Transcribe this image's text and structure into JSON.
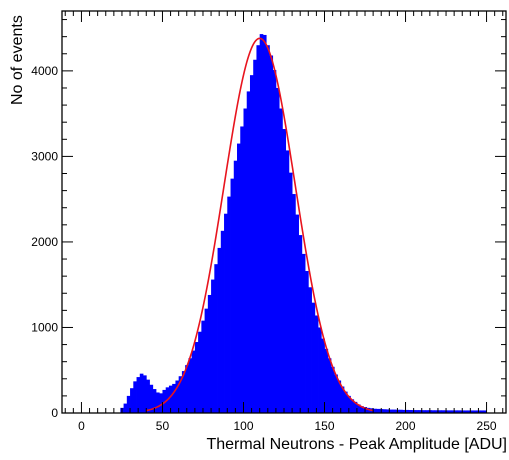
{
  "chart_data": {
    "type": "bar",
    "title": "",
    "xlabel": "Thermal Neutrons - Peak Amplitude [ADU]",
    "ylabel": "No of events",
    "xlim": [
      -12,
      262
    ],
    "ylim": [
      0,
      4700
    ],
    "x_ticks": [
      0,
      50,
      100,
      150,
      200,
      250
    ],
    "y_ticks": [
      0,
      1000,
      2000,
      3000,
      4000
    ],
    "grid": false,
    "bin_width": 2,
    "colors": {
      "histogram": "#0000ff",
      "fit": "#e8141e",
      "axes": "#000000"
    },
    "series": [
      {
        "kind": "histogram",
        "bins": [
          [
            24,
            60
          ],
          [
            26,
            110
          ],
          [
            28,
            200
          ],
          [
            30,
            290
          ],
          [
            32,
            370
          ],
          [
            34,
            420
          ],
          [
            36,
            460
          ],
          [
            38,
            440
          ],
          [
            40,
            390
          ],
          [
            42,
            330
          ],
          [
            44,
            280
          ],
          [
            46,
            240
          ],
          [
            48,
            230
          ],
          [
            50,
            270
          ],
          [
            52,
            300
          ],
          [
            54,
            320
          ],
          [
            56,
            340
          ],
          [
            58,
            380
          ],
          [
            60,
            430
          ],
          [
            62,
            490
          ],
          [
            64,
            560
          ],
          [
            66,
            640
          ],
          [
            68,
            730
          ],
          [
            70,
            830
          ],
          [
            72,
            950
          ],
          [
            74,
            1080
          ],
          [
            76,
            1220
          ],
          [
            78,
            1380
          ],
          [
            80,
            1560
          ],
          [
            82,
            1740
          ],
          [
            84,
            1930
          ],
          [
            86,
            2130
          ],
          [
            88,
            2330
          ],
          [
            90,
            2530
          ],
          [
            92,
            2740
          ],
          [
            94,
            2950
          ],
          [
            96,
            3150
          ],
          [
            98,
            3350
          ],
          [
            100,
            3560
          ],
          [
            102,
            3760
          ],
          [
            104,
            3950
          ],
          [
            106,
            4130
          ],
          [
            108,
            4300
          ],
          [
            110,
            4430
          ],
          [
            112,
            4420
          ],
          [
            114,
            4300
          ],
          [
            116,
            4180
          ],
          [
            118,
            4010
          ],
          [
            120,
            3800
          ],
          [
            122,
            3560
          ],
          [
            124,
            3320
          ],
          [
            126,
            3070
          ],
          [
            128,
            2810
          ],
          [
            130,
            2560
          ],
          [
            132,
            2320
          ],
          [
            134,
            2080
          ],
          [
            136,
            1860
          ],
          [
            138,
            1660
          ],
          [
            140,
            1470
          ],
          [
            142,
            1290
          ],
          [
            144,
            1140
          ],
          [
            146,
            1000
          ],
          [
            148,
            870
          ],
          [
            150,
            750
          ],
          [
            152,
            640
          ],
          [
            154,
            540
          ],
          [
            156,
            450
          ],
          [
            158,
            380
          ],
          [
            160,
            310
          ],
          [
            162,
            250
          ],
          [
            164,
            200
          ],
          [
            166,
            160
          ],
          [
            168,
            130
          ],
          [
            170,
            100
          ],
          [
            172,
            80
          ],
          [
            174,
            70
          ],
          [
            176,
            60
          ],
          [
            178,
            55
          ],
          [
            180,
            50
          ],
          [
            182,
            48
          ],
          [
            184,
            46
          ],
          [
            186,
            44
          ],
          [
            188,
            42
          ],
          [
            190,
            40
          ],
          [
            192,
            40
          ],
          [
            194,
            38
          ],
          [
            196,
            38
          ],
          [
            198,
            36
          ],
          [
            200,
            36
          ],
          [
            202,
            35
          ],
          [
            204,
            34
          ],
          [
            206,
            34
          ],
          [
            208,
            34
          ],
          [
            210,
            33
          ],
          [
            212,
            33
          ],
          [
            214,
            33
          ],
          [
            216,
            32
          ],
          [
            218,
            32
          ],
          [
            220,
            32
          ],
          [
            222,
            32
          ],
          [
            224,
            31
          ],
          [
            226,
            31
          ],
          [
            228,
            31
          ],
          [
            230,
            31
          ],
          [
            232,
            31
          ],
          [
            234,
            30
          ],
          [
            236,
            30
          ],
          [
            238,
            30
          ],
          [
            240,
            30
          ],
          [
            242,
            30
          ],
          [
            244,
            30
          ],
          [
            246,
            30
          ],
          [
            248,
            30
          ]
        ]
      },
      {
        "kind": "gaussian-fit",
        "amplitude": 4380,
        "mean": 110,
        "sigma": 22,
        "x_range": [
          40,
          180
        ]
      }
    ]
  }
}
